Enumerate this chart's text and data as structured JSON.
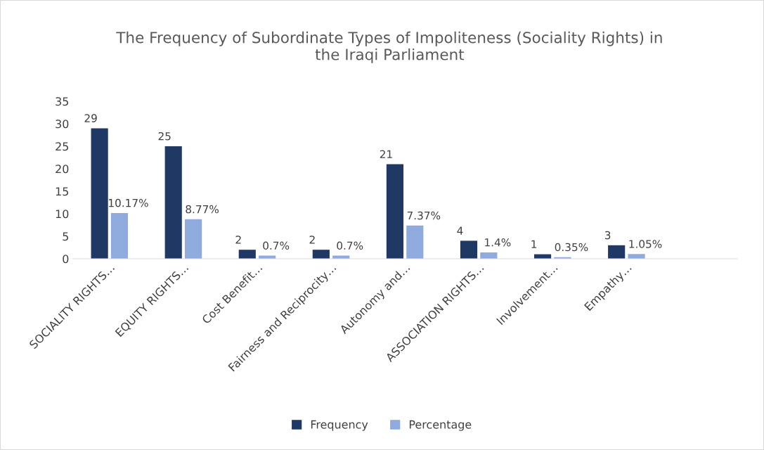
{
  "chart_data": {
    "type": "bar",
    "title": "The Frequency of Subordinate Types of Impoliteness (Sociality Rights) in the Iraqi Parliament",
    "categories": [
      "SOCIALITY RIGHTS…",
      "EQUITY RIGHTS…",
      "Cost Benefit…",
      "Fairness and Reciprocity…",
      "Autonomy and…",
      "ASSOCIATION RIGHTS…",
      "Involvement…",
      "Empathy…",
      null
    ],
    "series": [
      {
        "name": "Frequency",
        "color": "#203864",
        "values": [
          29,
          25,
          2,
          2,
          21,
          4,
          1,
          3,
          null
        ],
        "value_labels": [
          "29",
          "25",
          "2",
          "2",
          "21",
          "4",
          "1",
          "3",
          null
        ]
      },
      {
        "name": "Percentage",
        "color": "#8faadc",
        "values": [
          10.17,
          8.77,
          0.7,
          0.7,
          7.37,
          1.4,
          0.35,
          1.05,
          null
        ],
        "value_labels": [
          "10.17%",
          "8.77%",
          "0.7%",
          "0.7%",
          "7.37%",
          "1.4%",
          "0.35%",
          "1.05%",
          null
        ]
      }
    ],
    "ylim": [
      0,
      35
    ],
    "yticks": [
      0,
      5,
      10,
      15,
      20,
      25,
      30,
      35
    ],
    "grid": false,
    "legend": "bottom"
  }
}
